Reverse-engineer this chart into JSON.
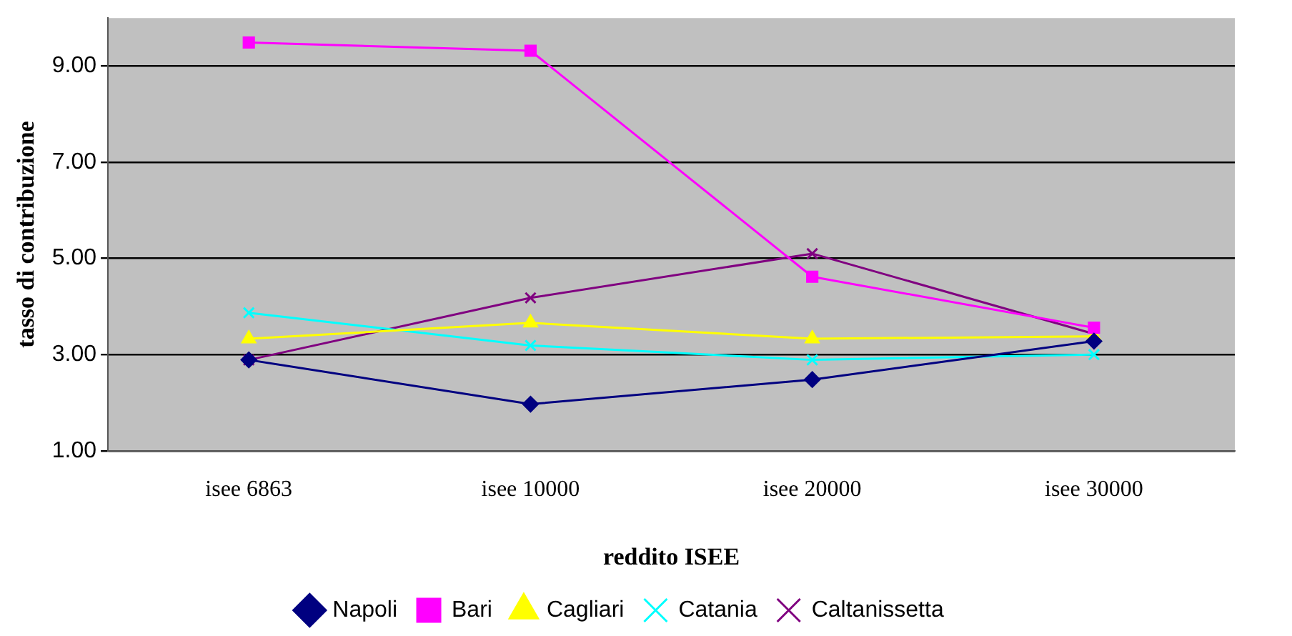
{
  "chart_data": {
    "type": "line",
    "xlabel": "reddito ISEE",
    "ylabel": "tasso di contribuzione",
    "categories": [
      "isee 6863",
      "isee 10000",
      "isee 20000",
      "isee 30000"
    ],
    "ylim": [
      1,
      10
    ],
    "yticks": [
      {
        "value": 1,
        "label": "1.00"
      },
      {
        "value": 3,
        "label": "3.00"
      },
      {
        "value": 5,
        "label": "5.00"
      },
      {
        "value": 7,
        "label": "7.00"
      },
      {
        "value": 9,
        "label": "9.00"
      }
    ],
    "grid": "y",
    "legend": "bottom",
    "series": [
      {
        "name": "Napoli",
        "color": "#000080",
        "marker": "diamond",
        "values": [
          2.89,
          1.97,
          2.48,
          3.28
        ]
      },
      {
        "name": "Bari",
        "color": "#ff00ff",
        "marker": "square",
        "values": [
          9.49,
          9.32,
          4.62,
          3.56
        ]
      },
      {
        "name": "Cagliari",
        "color": "#ffff00",
        "marker": "triangle",
        "values": [
          3.33,
          3.66,
          3.33,
          3.38
        ]
      },
      {
        "name": "Catania",
        "color": "#00ffff",
        "marker": "cross",
        "values": [
          3.87,
          3.19,
          2.89,
          3.0
        ]
      },
      {
        "name": "Caltanissetta",
        "color": "#800080",
        "marker": "cross",
        "values": [
          2.89,
          4.18,
          5.1,
          3.43
        ]
      }
    ]
  }
}
